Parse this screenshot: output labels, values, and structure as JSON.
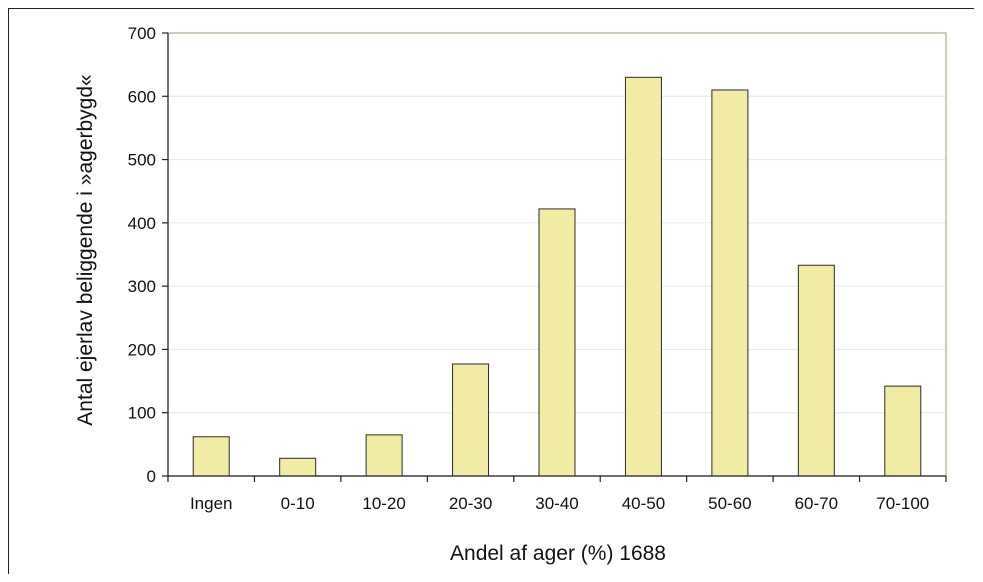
{
  "chart_data": {
    "type": "bar",
    "categories": [
      "Ingen",
      "0-10",
      "10-20",
      "20-30",
      "30-40",
      "40-50",
      "50-60",
      "60-70",
      "70-100"
    ],
    "values": [
      62,
      28,
      65,
      177,
      422,
      630,
      610,
      333,
      142
    ],
    "title": "",
    "xlabel": "Andel af ager (%) 1688",
    "ylabel": "Antal ejerlav beliggende i »agerbygd«",
    "ylim": [
      0,
      700
    ],
    "yticks": [
      0,
      100,
      200,
      300,
      400,
      500,
      600,
      700
    ],
    "grid": true,
    "legend": "none",
    "colors": {
      "bar_fill": "#f2eba4",
      "bar_stroke": "#2b2b2b",
      "plot_border": "#a9b08a",
      "grid": "#e6e6e6"
    }
  }
}
